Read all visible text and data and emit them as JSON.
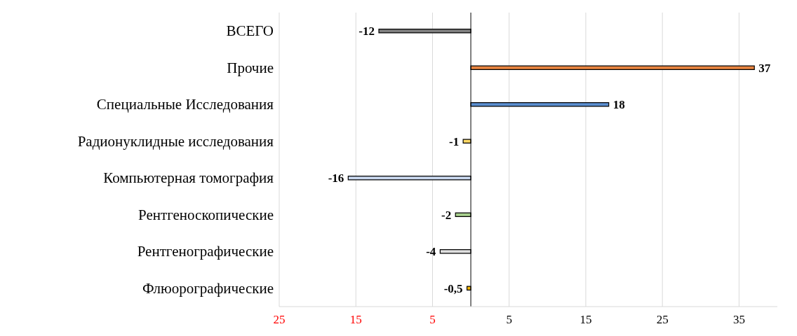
{
  "chart_data": {
    "type": "bar",
    "orientation": "horizontal",
    "categories": [
      "ВСЕГО",
      "Прочие",
      "Специальные Исследования",
      "Радионуклидные исследования",
      "Компьютерная томография",
      "Рентгеноскопические",
      "Рентгенографические",
      "Флюорографические"
    ],
    "values": [
      -12,
      37,
      18,
      -1,
      -16,
      -2,
      -4,
      -0.5
    ],
    "value_labels": [
      "-12",
      "37",
      "18",
      "-1",
      "-16",
      "-2",
      "-4",
      "-0,5"
    ],
    "colors": [
      "#808080",
      "#e8843f",
      "#5b8fd0",
      "#ffd966",
      "#c9d7ee",
      "#a9d18e",
      "#e0e0e0",
      "#f5b800"
    ],
    "xlim": [
      -25,
      40
    ],
    "xticks": [
      {
        "value": -25,
        "label": "25"
      },
      {
        "value": -15,
        "label": "15"
      },
      {
        "value": -5,
        "label": "5"
      },
      5,
      15,
      25,
      35
    ],
    "grid": "x"
  }
}
